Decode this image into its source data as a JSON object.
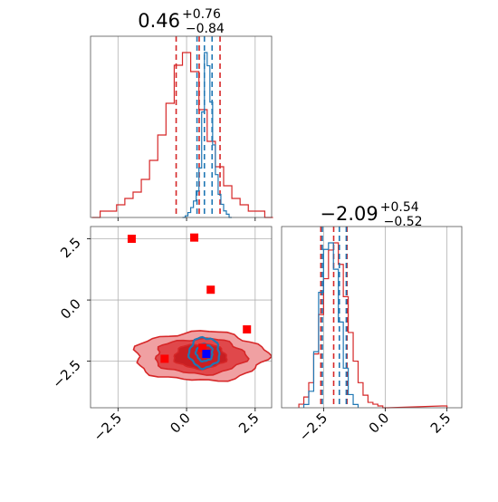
{
  "colors": {
    "red": "#d62728",
    "blue": "#1f77b4",
    "marker_red": "#ff0000",
    "marker_blue": "#0000ff",
    "grid": "#b0b0b0"
  },
  "chart_data": [
    {
      "type": "histogram",
      "panel": "top-left marginal (parameter 1)",
      "title": {
        "median": "0.46",
        "plus": "+0.76",
        "minus": "−0.84"
      },
      "xlim": [
        -3.5,
        3.1
      ],
      "ticks": [
        -2.5,
        0.0,
        2.5
      ],
      "tick_labels": [],
      "grid": true,
      "series": [
        {
          "color": "#d62728",
          "x": [
            -3.3,
            -3.0,
            -2.7,
            -2.4,
            -2.1,
            -1.8,
            -1.5,
            -1.2,
            -0.9,
            -0.6,
            -0.3,
            0.0,
            0.3,
            0.6,
            0.9,
            1.2,
            1.5,
            1.8,
            2.1,
            2.4,
            2.7,
            3.0
          ],
          "values": [
            0,
            1,
            1,
            2,
            3,
            4,
            6,
            9,
            13,
            18,
            24,
            26,
            23,
            17,
            12,
            8,
            5,
            3,
            2,
            1,
            1,
            0
          ],
          "quantiles": [
            -0.38,
            0.46,
            1.22
          ]
        },
        {
          "color": "#1f77b4",
          "x": [
            -0.1,
            0.0,
            0.1,
            0.2,
            0.3,
            0.4,
            0.5,
            0.6,
            0.7,
            0.8,
            0.9,
            1.0,
            1.1,
            1.2,
            1.3,
            1.4,
            1.5,
            1.6
          ],
          "values": [
            0,
            1,
            3,
            6,
            10,
            16,
            30,
            64,
            100,
            92,
            70,
            44,
            26,
            14,
            8,
            4,
            2,
            0
          ],
          "quantiles": [
            0.38,
            0.65,
            0.93
          ]
        }
      ]
    },
    {
      "type": "histogram",
      "panel": "bottom-right marginal (parameter 2)",
      "title": {
        "median": "−2.09",
        "plus": "+0.54",
        "minus": "−0.52"
      },
      "xlim": [
        -4.2,
        3.1
      ],
      "ticks": [
        -2.5,
        0.0,
        2.5
      ],
      "tick_labels": [
        "−2.5",
        "0.0",
        "2.5"
      ],
      "grid": true,
      "series": [
        {
          "color": "#d62728",
          "x": [
            -3.4,
            -3.2,
            -3.0,
            -2.8,
            -2.6,
            -2.4,
            -2.2,
            -2.0,
            -1.8,
            -1.6,
            -1.4,
            -1.2,
            -1.0,
            -0.8,
            -0.6,
            -0.4,
            -0.2,
            0.0,
            2.4
          ],
          "values": [
            2,
            6,
            14,
            30,
            52,
            72,
            88,
            92,
            80,
            62,
            42,
            26,
            14,
            7,
            3,
            2,
            1,
            0,
            1
          ],
          "quantiles": [
            -2.61,
            -2.09,
            -1.55
          ]
        },
        {
          "color": "#1f77b4",
          "x": [
            -3.2,
            -3.0,
            -2.8,
            -2.6,
            -2.4,
            -2.2,
            -2.0,
            -1.8,
            -1.6,
            -1.4,
            -1.2
          ],
          "values": [
            2,
            10,
            34,
            70,
            96,
            100,
            84,
            52,
            24,
            8,
            2
          ],
          "quantiles": [
            -2.55,
            -1.86,
            -1.58
          ]
        }
      ]
    },
    {
      "type": "contour",
      "panel": "bottom-left joint distribution",
      "xlim": [
        -3.5,
        3.1
      ],
      "ylim": [
        -4.4,
        3.0
      ],
      "xticks": [
        -2.5,
        0.0,
        2.5
      ],
      "xtick_labels": [
        "−2.5",
        "0.0",
        "2.5"
      ],
      "yticks": [
        -2.5,
        0.0,
        2.5
      ],
      "ytick_labels": [
        "−2.5",
        "0.0",
        "2.5"
      ],
      "grid": true,
      "contours": [
        {
          "color": "#d62728",
          "center": [
            0.5,
            -2.3
          ],
          "radii": [
            [
              2.4,
              1.0
            ],
            [
              1.65,
              0.72
            ],
            [
              0.95,
              0.5
            ]
          ]
        },
        {
          "color": "#1f77b4",
          "center": [
            0.65,
            -2.15
          ],
          "radii": [
            [
              0.55,
              0.62
            ],
            [
              0.3,
              0.35
            ]
          ]
        }
      ],
      "markers": [
        {
          "color": "#ff0000",
          "x": -2.0,
          "y": 2.5
        },
        {
          "color": "#ff0000",
          "x": 0.28,
          "y": 2.55
        },
        {
          "color": "#ff0000",
          "x": 0.88,
          "y": 0.42
        },
        {
          "color": "#ff0000",
          "x": 2.2,
          "y": -1.2
        },
        {
          "color": "#ff0000",
          "x": -0.8,
          "y": -2.4
        },
        {
          "color": "#ff0000",
          "x": 0.58,
          "y": -1.95
        },
        {
          "color": "#0000ff",
          "x": 0.72,
          "y": -2.2
        }
      ]
    }
  ]
}
